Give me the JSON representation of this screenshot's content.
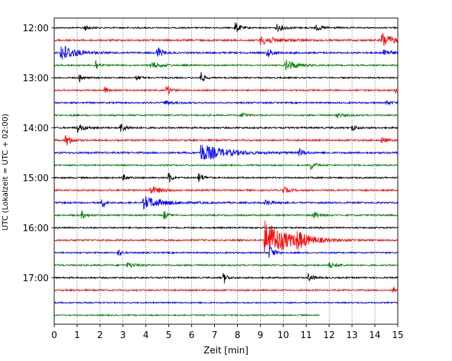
{
  "chart_data": {
    "type": "line",
    "title": "",
    "xlabel": "Zeit  [min]",
    "ylabel": "UTC (Lokalzeit = UTC + 02:00)",
    "xlim": [
      0,
      15
    ],
    "x_ticks": [
      "0",
      "1",
      "2",
      "3",
      "4",
      "5",
      "6",
      "7",
      "8",
      "9",
      "10",
      "11",
      "12",
      "13",
      "14",
      "15"
    ],
    "y_ticks": [
      {
        "label": "12:00",
        "row": 0
      },
      {
        "label": "13:00",
        "row": 4
      },
      {
        "label": "14:00",
        "row": 8
      },
      {
        "label": "15:00",
        "row": 12
      },
      {
        "label": "16:00",
        "row": 16
      },
      {
        "label": "17:00",
        "row": 20
      }
    ],
    "row_minutes": 15,
    "grid": {
      "x": true,
      "y": false
    },
    "series_colors": [
      "#000000",
      "#ff0000",
      "#0000ff",
      "#008000"
    ],
    "traces": [
      {
        "start_utc": "12:00",
        "end_min": 15,
        "noise": 1.0,
        "events": [
          {
            "t": 1.3,
            "amp": 5,
            "dur": 0.3
          },
          {
            "t": 7.9,
            "amp": 9,
            "dur": 0.3
          },
          {
            "t": 9.7,
            "amp": 5,
            "dur": 0.6
          },
          {
            "t": 11.4,
            "amp": 4,
            "dur": 0.6
          }
        ]
      },
      {
        "start_utc": "12:15",
        "end_min": 15,
        "noise": 1.2,
        "events": [
          {
            "t": 9.0,
            "amp": 6,
            "dur": 1.2
          },
          {
            "t": 14.3,
            "amp": 12,
            "dur": 0.7
          }
        ]
      },
      {
        "start_utc": "12:30",
        "end_min": 15,
        "noise": 1.2,
        "events": [
          {
            "t": 0.3,
            "amp": 14,
            "dur": 0.9
          },
          {
            "t": 4.5,
            "amp": 10,
            "dur": 0.3
          },
          {
            "t": 9.3,
            "amp": 6,
            "dur": 0.5
          },
          {
            "t": 14.4,
            "amp": 6,
            "dur": 0.4
          }
        ]
      },
      {
        "start_utc": "12:45",
        "end_min": 15,
        "noise": 1.0,
        "events": [
          {
            "t": 1.8,
            "amp": 10,
            "dur": 0.2
          },
          {
            "t": 4.2,
            "amp": 5,
            "dur": 0.7
          },
          {
            "t": 10.1,
            "amp": 9,
            "dur": 0.7
          }
        ]
      },
      {
        "start_utc": "13:00",
        "end_min": 15,
        "noise": 1.0,
        "events": [
          {
            "t": 1.1,
            "amp": 7,
            "dur": 0.2
          },
          {
            "t": 3.6,
            "amp": 5,
            "dur": 0.2
          },
          {
            "t": 6.4,
            "amp": 10,
            "dur": 0.2
          }
        ]
      },
      {
        "start_utc": "13:15",
        "end_min": 15,
        "noise": 1.0,
        "events": [
          {
            "t": 2.2,
            "amp": 5,
            "dur": 0.2
          },
          {
            "t": 4.9,
            "amp": 8,
            "dur": 0.3
          },
          {
            "t": 14.9,
            "amp": 4,
            "dur": 0.2
          }
        ]
      },
      {
        "start_utc": "13:30",
        "end_min": 15,
        "noise": 1.1,
        "events": [
          {
            "t": 4.8,
            "amp": 3,
            "dur": 0.6
          },
          {
            "t": 14.5,
            "amp": 4,
            "dur": 0.3
          }
        ]
      },
      {
        "start_utc": "13:45",
        "end_min": 15,
        "noise": 1.1,
        "events": [
          {
            "t": 8.2,
            "amp": 5,
            "dur": 0.3
          },
          {
            "t": 12.3,
            "amp": 4,
            "dur": 0.5
          }
        ]
      },
      {
        "start_utc": "14:00",
        "end_min": 15,
        "noise": 1.2,
        "events": [
          {
            "t": 1.0,
            "amp": 6,
            "dur": 0.5
          },
          {
            "t": 2.9,
            "amp": 7,
            "dur": 0.4
          },
          {
            "t": 13.0,
            "amp": 7,
            "dur": 0.2
          }
        ]
      },
      {
        "start_utc": "14:15",
        "end_min": 15,
        "noise": 1.1,
        "events": [
          {
            "t": 0.5,
            "amp": 9,
            "dur": 0.4
          },
          {
            "t": 14.3,
            "amp": 5,
            "dur": 0.3
          }
        ]
      },
      {
        "start_utc": "14:30",
        "end_min": 15,
        "noise": 1.3,
        "events": [
          {
            "t": 6.4,
            "amp": 13,
            "dur": 1.6
          },
          {
            "t": 10.7,
            "amp": 6,
            "dur": 0.3
          }
        ]
      },
      {
        "start_utc": "14:45",
        "end_min": 15,
        "noise": 1.0,
        "events": [
          {
            "t": 11.2,
            "amp": 7,
            "dur": 0.3
          }
        ]
      },
      {
        "start_utc": "15:00",
        "end_min": 15,
        "noise": 1.1,
        "events": [
          {
            "t": 3.0,
            "amp": 4,
            "dur": 0.3
          },
          {
            "t": 5.0,
            "amp": 9,
            "dur": 0.2
          },
          {
            "t": 6.3,
            "amp": 8,
            "dur": 0.3
          }
        ]
      },
      {
        "start_utc": "15:15",
        "end_min": 15,
        "noise": 1.1,
        "events": [
          {
            "t": 4.2,
            "amp": 6,
            "dur": 0.7
          },
          {
            "t": 10.0,
            "amp": 5,
            "dur": 0.4
          }
        ]
      },
      {
        "start_utc": "15:30",
        "end_min": 15,
        "noise": 1.2,
        "events": [
          {
            "t": 2.1,
            "amp": 9,
            "dur": 0.2
          },
          {
            "t": 3.9,
            "amp": 9,
            "dur": 1.3
          },
          {
            "t": 9.2,
            "amp": 4,
            "dur": 0.5
          }
        ]
      },
      {
        "start_utc": "15:45",
        "end_min": 15,
        "noise": 1.1,
        "events": [
          {
            "t": 1.2,
            "amp": 6,
            "dur": 0.3
          },
          {
            "t": 4.8,
            "amp": 7,
            "dur": 0.2
          },
          {
            "t": 11.3,
            "amp": 6,
            "dur": 0.4
          }
        ]
      },
      {
        "start_utc": "16:00",
        "end_min": 15,
        "noise": 1.1,
        "events": []
      },
      {
        "start_utc": "16:15",
        "end_min": 15,
        "noise": 1.1,
        "events": [
          {
            "t": 9.2,
            "amp": 28,
            "dur": 1.6
          },
          {
            "t": 10.6,
            "amp": 10,
            "dur": 0.6
          }
        ]
      },
      {
        "start_utc": "16:30",
        "end_min": 15,
        "noise": 1.0,
        "events": [
          {
            "t": 2.8,
            "amp": 6,
            "dur": 0.2
          },
          {
            "t": 9.4,
            "amp": 12,
            "dur": 0.3
          }
        ]
      },
      {
        "start_utc": "16:45",
        "end_min": 15,
        "noise": 1.1,
        "events": [
          {
            "t": 3.2,
            "amp": 4,
            "dur": 0.6
          },
          {
            "t": 12.0,
            "amp": 4,
            "dur": 0.5
          }
        ]
      },
      {
        "start_utc": "17:00",
        "end_min": 15,
        "noise": 1.1,
        "events": [
          {
            "t": 7.4,
            "amp": 10,
            "dur": 0.2
          },
          {
            "t": 11.1,
            "amp": 7,
            "dur": 0.3
          }
        ]
      },
      {
        "start_utc": "17:15",
        "end_min": 15,
        "noise": 1.0,
        "events": [
          {
            "t": 14.8,
            "amp": 5,
            "dur": 0.3
          }
        ]
      },
      {
        "start_utc": "17:30",
        "end_min": 15,
        "noise": 0.9,
        "events": []
      },
      {
        "start_utc": "17:45",
        "end_min": 11.6,
        "noise": 0.9,
        "events": []
      }
    ]
  }
}
